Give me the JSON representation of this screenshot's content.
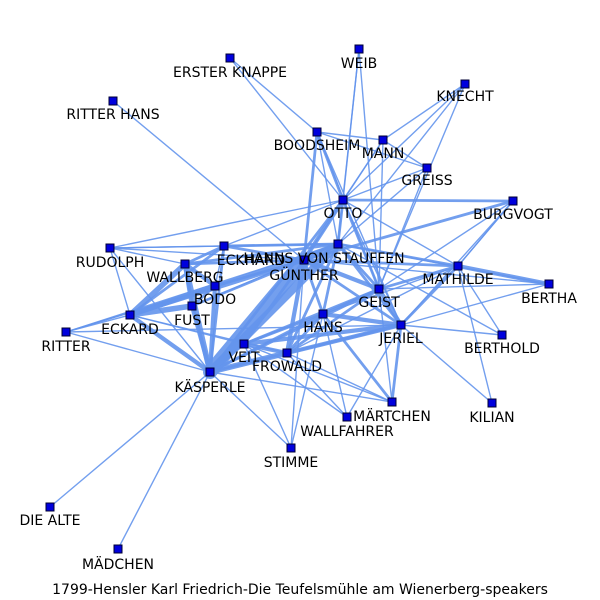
{
  "caption": "1799-Hensler Karl Friedrich-Die Teufelsmühle am Wienerberg-speakers",
  "colors": {
    "edge": "#6495ED",
    "node_fill": "#0000DD",
    "node_stroke": "#000033",
    "text": "#000000",
    "background": "#FFFFFF"
  },
  "nodes": [
    {
      "id": "ERSTER KNAPPE",
      "label": "ERSTER KNAPPE"
    },
    {
      "id": "WEIB",
      "label": "WEIB"
    },
    {
      "id": "KNECHT",
      "label": "KNECHT"
    },
    {
      "id": "RITTER HANS",
      "label": "RITTER HANS"
    },
    {
      "id": "BOODSHEIM",
      "label": "BOODSHEIM"
    },
    {
      "id": "MANN",
      "label": "MANN"
    },
    {
      "id": "GREISS",
      "label": "GREISS"
    },
    {
      "id": "OTTO",
      "label": "OTTO"
    },
    {
      "id": "BURGVOGT",
      "label": "BURGVOGT"
    },
    {
      "id": "HANNS VON STAUFFEN",
      "label": "HANNS VON STAUFFEN"
    },
    {
      "id": "ECKHARD",
      "label": "ECKHARD"
    },
    {
      "id": "RUDOLPH",
      "label": "RUDOLPH"
    },
    {
      "id": "GÜNTHER",
      "label": "GÜNTHER"
    },
    {
      "id": "WALLBERG",
      "label": "WALLBERG"
    },
    {
      "id": "MATHILDE",
      "label": "MATHILDE"
    },
    {
      "id": "BERTHA",
      "label": "BERTHA"
    },
    {
      "id": "BODO",
      "label": "BODO"
    },
    {
      "id": "GEIST",
      "label": "GEIST"
    },
    {
      "id": "FUST",
      "label": "FUST"
    },
    {
      "id": "ECKARD",
      "label": "ECKARD"
    },
    {
      "id": "HANS",
      "label": "HANS"
    },
    {
      "id": "JERIEL",
      "label": "JERIEL"
    },
    {
      "id": "RITTER",
      "label": "RITTER"
    },
    {
      "id": "BERTHOLD",
      "label": "BERTHOLD"
    },
    {
      "id": "VEIT",
      "label": "VEIT"
    },
    {
      "id": "FROWALD",
      "label": "FROWALD"
    },
    {
      "id": "KÄSPERLE",
      "label": "KÄSPERLE"
    },
    {
      "id": "MÄRTCHEN",
      "label": "MÄRTCHEN"
    },
    {
      "id": "WALLFAHRER",
      "label": "WALLFAHRER"
    },
    {
      "id": "KILIAN",
      "label": "KILIAN"
    },
    {
      "id": "STIMME",
      "label": "STIMME"
    },
    {
      "id": "DIE ALTE",
      "label": "DIE ALTE"
    },
    {
      "id": "MÄDCHEN",
      "label": "MÄDCHEN"
    }
  ],
  "edges": [
    [
      "KÄSPERLE",
      "GÜNTHER",
      10
    ],
    [
      "KÄSPERLE",
      "HANNS VON STAUFFEN",
      6
    ],
    [
      "KÄSPERLE",
      "FROWALD",
      4
    ],
    [
      "KÄSPERLE",
      "WALLBERG",
      4
    ],
    [
      "KÄSPERLE",
      "BODO",
      3
    ],
    [
      "KÄSPERLE",
      "FUST",
      3
    ],
    [
      "KÄSPERLE",
      "ECKARD",
      3
    ],
    [
      "KÄSPERLE",
      "VEIT",
      2
    ],
    [
      "KÄSPERLE",
      "HANS",
      2
    ],
    [
      "KÄSPERLE",
      "GEIST",
      2
    ],
    [
      "KÄSPERLE",
      "JERIEL",
      2
    ],
    [
      "KÄSPERLE",
      "OTTO",
      2
    ],
    [
      "KÄSPERLE",
      "ECKHARD",
      2
    ],
    [
      "KÄSPERLE",
      "DIE ALTE",
      1
    ],
    [
      "KÄSPERLE",
      "MÄDCHEN",
      1
    ],
    [
      "KÄSPERLE",
      "RUDOLPH",
      1
    ],
    [
      "KÄSPERLE",
      "RITTER",
      1
    ],
    [
      "KÄSPERLE",
      "STIMME",
      1
    ],
    [
      "KÄSPERLE",
      "MÄRTCHEN",
      1
    ],
    [
      "ECKARD",
      "WALLBERG",
      4
    ],
    [
      "ECKARD",
      "BODO",
      4
    ],
    [
      "ECKARD",
      "FUST",
      4
    ],
    [
      "ECKARD",
      "ECKHARD",
      2
    ],
    [
      "ECKARD",
      "GÜNTHER",
      3
    ],
    [
      "ECKARD",
      "HANNS VON STAUFFEN",
      2
    ],
    [
      "ECKARD",
      "RITTER",
      1
    ],
    [
      "ECKARD",
      "RUDOLPH",
      1
    ],
    [
      "ECKARD",
      "VEIT",
      1
    ],
    [
      "ECKARD",
      "FROWALD",
      1
    ],
    [
      "WALLBERG",
      "BODO",
      3
    ],
    [
      "WALLBERG",
      "FUST",
      3
    ],
    [
      "WALLBERG",
      "ECKHARD",
      2
    ],
    [
      "WALLBERG",
      "GÜNTHER",
      2
    ],
    [
      "WALLBERG",
      "HANNS VON STAUFFEN",
      2
    ],
    [
      "BODO",
      "FUST",
      2
    ],
    [
      "BODO",
      "GÜNTHER",
      2
    ],
    [
      "FUST",
      "GÜNTHER",
      2
    ],
    [
      "FUST",
      "HANNS VON STAUFFEN",
      1
    ],
    [
      "GÜNTHER",
      "HANNS VON STAUFFEN",
      4
    ],
    [
      "GÜNTHER",
      "GEIST",
      3
    ],
    [
      "GÜNTHER",
      "OTTO",
      3
    ],
    [
      "GÜNTHER",
      "JERIEL",
      2
    ],
    [
      "GÜNTHER",
      "HANS",
      2
    ],
    [
      "GÜNTHER",
      "FROWALD",
      3
    ],
    [
      "GÜNTHER",
      "VEIT",
      2
    ],
    [
      "GÜNTHER",
      "MATHILDE",
      2
    ],
    [
      "GÜNTHER",
      "ECKHARD",
      2
    ],
    [
      "GÜNTHER",
      "BOODSHEIM",
      2
    ],
    [
      "GÜNTHER",
      "BURGVOGT",
      2
    ],
    [
      "GÜNTHER",
      "RUDOLPH",
      1
    ],
    [
      "GÜNTHER",
      "BERTHA",
      1
    ],
    [
      "GÜNTHER",
      "MANN",
      1
    ],
    [
      "GÜNTHER",
      "STIMME",
      1
    ],
    [
      "HANNS VON STAUFFEN",
      "GEIST",
      2
    ],
    [
      "HANNS VON STAUFFEN",
      "JERIEL",
      2
    ],
    [
      "HANNS VON STAUFFEN",
      "OTTO",
      2
    ],
    [
      "HANNS VON STAUFFEN",
      "MATHILDE",
      2
    ],
    [
      "HANNS VON STAUFFEN",
      "FROWALD",
      2
    ],
    [
      "HANNS VON STAUFFEN",
      "HANS",
      2
    ],
    [
      "HANNS VON STAUFFEN",
      "BOODSHEIM",
      1
    ],
    [
      "HANNS VON STAUFFEN",
      "WEIB",
      1
    ],
    [
      "HANNS VON STAUFFEN",
      "ECKHARD",
      2
    ],
    [
      "HANNS VON STAUFFEN",
      "BERTHA",
      1
    ],
    [
      "HANNS VON STAUFFEN",
      "KNECHT",
      1
    ],
    [
      "HANNS VON STAUFFEN",
      "GREISS",
      1
    ],
    [
      "HANNS VON STAUFFEN",
      "BERTHOLD",
      1
    ],
    [
      "MATHILDE",
      "BERTHA",
      3
    ],
    [
      "MATHILDE",
      "JERIEL",
      2
    ],
    [
      "MATHILDE",
      "GEIST",
      2
    ],
    [
      "MATHILDE",
      "BURGVOGT",
      1
    ],
    [
      "MATHILDE",
      "HANS",
      1
    ],
    [
      "MATHILDE",
      "OTTO",
      1
    ],
    [
      "MATHILDE",
      "BERTHOLD",
      1
    ],
    [
      "MATHILDE",
      "FROWALD",
      1
    ],
    [
      "JERIEL",
      "GEIST",
      3
    ],
    [
      "JERIEL",
      "HANS",
      3
    ],
    [
      "JERIEL",
      "FROWALD",
      3
    ],
    [
      "JERIEL",
      "VEIT",
      3
    ],
    [
      "JERIEL",
      "MÄRTCHEN",
      2
    ],
    [
      "JERIEL",
      "KILIAN",
      1
    ],
    [
      "JERIEL",
      "BERTHA",
      1
    ],
    [
      "JERIEL",
      "BERTHOLD",
      1
    ],
    [
      "JERIEL",
      "WALLFAHRER",
      1
    ],
    [
      "JERIEL",
      "OTTO",
      1
    ],
    [
      "JERIEL",
      "RITTER",
      1
    ],
    [
      "GEIST",
      "HANS",
      2
    ],
    [
      "GEIST",
      "FROWALD",
      2
    ],
    [
      "GEIST",
      "VEIT",
      2
    ],
    [
      "GEIST",
      "OTTO",
      2
    ],
    [
      "GEIST",
      "BURGVOGT",
      1
    ],
    [
      "GEIST",
      "MÄRTCHEN",
      1
    ],
    [
      "HANS",
      "FROWALD",
      2
    ],
    [
      "HANS",
      "VEIT",
      2
    ],
    [
      "HANS",
      "MÄRTCHEN",
      2
    ],
    [
      "HANS",
      "WALLFAHRER",
      1
    ],
    [
      "HANS",
      "STIMME",
      1
    ],
    [
      "FROWALD",
      "VEIT",
      3
    ],
    [
      "FROWALD",
      "WALLFAHRER",
      1
    ],
    [
      "FROWALD",
      "MÄRTCHEN",
      1
    ],
    [
      "OTTO",
      "BOODSHEIM",
      2
    ],
    [
      "OTTO",
      "MANN",
      1
    ],
    [
      "OTTO",
      "GREISS",
      1
    ],
    [
      "OTTO",
      "WEIB",
      1
    ],
    [
      "OTTO",
      "KNECHT",
      1
    ],
    [
      "OTTO",
      "ERSTER KNAPPE",
      1
    ],
    [
      "OTTO",
      "BURGVOGT",
      2
    ],
    [
      "OTTO",
      "ECKHARD",
      1
    ],
    [
      "OTTO",
      "RUDOLPH",
      1
    ],
    [
      "BOODSHEIM",
      "MANN",
      1
    ],
    [
      "BOODSHEIM",
      "GREISS",
      1
    ],
    [
      "BOODSHEIM",
      "ERSTER KNAPPE",
      1
    ],
    [
      "BOODSHEIM",
      "GEIST",
      1
    ],
    [
      "BOODSHEIM",
      "JERIEL",
      1
    ],
    [
      "MANN",
      "GREISS",
      1
    ],
    [
      "MANN",
      "GEIST",
      1
    ],
    [
      "KNECHT",
      "GEIST",
      1
    ],
    [
      "KNECHT",
      "MANN",
      1
    ],
    [
      "WEIB",
      "GEIST",
      1
    ],
    [
      "GREISS",
      "GEIST",
      1
    ],
    [
      "RITTER HANS",
      "GÜNTHER",
      1
    ],
    [
      "BURGVOGT",
      "JERIEL",
      1
    ],
    [
      "BURGVOGT",
      "MATHILDE",
      1
    ],
    [
      "ECKHARD",
      "RUDOLPH",
      1
    ],
    [
      "ECKHARD",
      "BODO",
      1
    ],
    [
      "RUDOLPH",
      "WALLBERG",
      1
    ],
    [
      "RUDOLPH",
      "HANNS VON STAUFFEN",
      1
    ],
    [
      "RITTER",
      "GÜNTHER",
      1
    ],
    [
      "RITTER",
      "HANNS VON STAUFFEN",
      1
    ],
    [
      "RITTER",
      "BODO",
      1
    ],
    [
      "VEIT",
      "WALLFAHRER",
      1
    ],
    [
      "VEIT",
      "MÄRTCHEN",
      1
    ],
    [
      "STIMME",
      "VEIT",
      1
    ],
    [
      "BERTHA",
      "GEIST",
      1
    ],
    [
      "KILIAN",
      "MATHILDE",
      1
    ]
  ]
}
